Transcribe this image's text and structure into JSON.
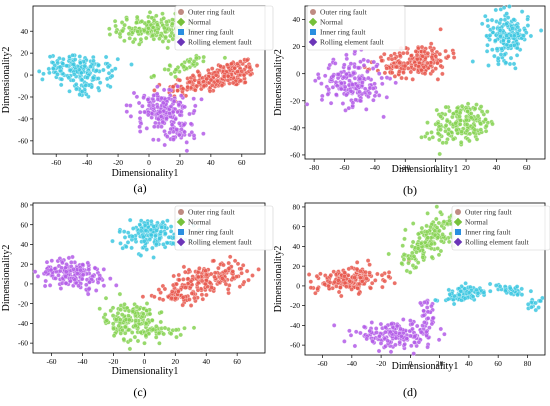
{
  "legend_labels": [
    "Outer ring fault",
    "Normal",
    "Inner ring fault",
    "Rolling element fault"
  ],
  "colors": {
    "outer": "#e8584e",
    "normal": "#86d252",
    "inner": "#3cc7e0",
    "rolling": "#b35ce8",
    "outer_marker": "#bf8b82",
    "normal_marker": "#76c13a",
    "inner_marker": "#2a8fe0",
    "rolling_marker": "#6b35b8"
  },
  "chart_data": [
    {
      "type": "scatter",
      "panel_label": "(a)",
      "xlabel": "Dimensionality1",
      "ylabel": "Dimensionality2",
      "xticks": [
        -60,
        -40,
        -20,
        0,
        20,
        40,
        60
      ],
      "yticks": [
        40,
        20,
        0,
        -20,
        -40,
        -60
      ],
      "xlim": [
        -75,
        75
      ],
      "ylim": [
        -72,
        63
      ],
      "legend_position": "top-right",
      "series": [
        {
          "name": "Outer ring fault",
          "clusters": [
            {
              "cx": 50,
              "cy": 0,
              "sx": 12,
              "sy": 6,
              "n": 170,
              "rot": 0.35
            },
            {
              "cx": 27,
              "cy": -10,
              "sx": 8,
              "sy": 5,
              "n": 60,
              "rot": 0.2
            }
          ]
        },
        {
          "name": "Normal",
          "clusters": [
            {
              "cx": 2,
              "cy": 42,
              "sx": 11,
              "sy": 6,
              "n": 160,
              "rot": 0
            },
            {
              "cx": 22,
              "cy": 8,
              "sx": 10,
              "sy": 3,
              "n": 40,
              "rot": 0.4
            }
          ]
        },
        {
          "name": "Inner ring fault",
          "clusters": [
            {
              "cx": -45,
              "cy": 5,
              "sx": 11,
              "sy": 6,
              "n": 150,
              "rot": -0.1
            },
            {
              "cx": -40,
              "cy": -10,
              "sx": 5,
              "sy": 5,
              "n": 30,
              "rot": 0
            }
          ]
        },
        {
          "name": "Rolling element fault",
          "clusters": [
            {
              "cx": 10,
              "cy": -33,
              "sx": 9,
              "sy": 10,
              "n": 170,
              "rot": 0.5
            },
            {
              "cx": 18,
              "cy": -55,
              "sx": 5,
              "sy": 4,
              "n": 30,
              "rot": 0
            }
          ]
        }
      ]
    },
    {
      "type": "scatter",
      "panel_label": "(b)",
      "xlabel": "Dimensionality1",
      "ylabel": "Dimensionality2",
      "xticks": [
        -80,
        -60,
        -40,
        -20,
        0,
        20,
        40,
        60
      ],
      "yticks": [
        40,
        20,
        0,
        -20,
        -40,
        -60
      ],
      "xlim": [
        -86,
        72
      ],
      "ylim": [
        -63,
        50
      ],
      "legend_position": "top-left",
      "series": [
        {
          "name": "Outer ring fault",
          "clusters": [
            {
              "cx": -10,
              "cy": 10,
              "sx": 10,
              "sy": 6,
              "n": 150,
              "rot": 0.15
            },
            {
              "cx": -28,
              "cy": 4,
              "sx": 6,
              "sy": 4,
              "n": 40,
              "rot": 0
            }
          ]
        },
        {
          "name": "Normal",
          "clusters": [
            {
              "cx": 18,
              "cy": -36,
              "sx": 11,
              "sy": 7,
              "n": 180,
              "rot": 0.35
            }
          ]
        },
        {
          "name": "Inner ring fault",
          "clusters": [
            {
              "cx": 47,
              "cy": 28,
              "sx": 7,
              "sy": 9,
              "n": 170,
              "rot": 0
            }
          ]
        },
        {
          "name": "Rolling element fault",
          "clusters": [
            {
              "cx": -55,
              "cy": -6,
              "sx": 10,
              "sy": 9,
              "n": 190,
              "rot": 0
            }
          ]
        }
      ]
    },
    {
      "type": "scatter",
      "panel_label": "(c)",
      "xlabel": "Dimensionality1",
      "ylabel": "Dimensionality2",
      "xticks": [
        -60,
        -40,
        -20,
        0,
        20,
        40,
        60
      ],
      "yticks": [
        80,
        60,
        40,
        20,
        0,
        -20,
        -40,
        -60
      ],
      "xlim": [
        -72,
        78
      ],
      "ylim": [
        -70,
        82
      ],
      "legend_position": "top-right",
      "series": [
        {
          "name": "Outer ring fault",
          "clusters": [
            {
              "cx": 42,
              "cy": 5,
              "sx": 13,
              "sy": 7,
              "n": 170,
              "rot": 0.3
            },
            {
              "cx": 20,
              "cy": -12,
              "sx": 7,
              "sy": 4,
              "n": 50,
              "rot": 0
            }
          ]
        },
        {
          "name": "Normal",
          "clusters": [
            {
              "cx": -8,
              "cy": -38,
              "sx": 8,
              "sy": 10,
              "n": 170,
              "rot": 0.3
            },
            {
              "cx": 12,
              "cy": -48,
              "sx": 7,
              "sy": 3,
              "n": 30,
              "rot": 0
            }
          ]
        },
        {
          "name": "Inner ring fault",
          "clusters": [
            {
              "cx": 5,
              "cy": 50,
              "sx": 11,
              "sy": 8,
              "n": 150,
              "rot": 0
            }
          ]
        },
        {
          "name": "Rolling element fault",
          "clusters": [
            {
              "cx": -45,
              "cy": 10,
              "sx": 11,
              "sy": 7,
              "n": 170,
              "rot": -0.2
            }
          ]
        }
      ]
    },
    {
      "type": "scatter",
      "panel_label": "(d)",
      "xlabel": "Dimensionality1",
      "ylabel": "Dimensionality2",
      "xticks": [
        -60,
        -40,
        -20,
        0,
        20,
        40,
        60,
        80
      ],
      "yticks": [
        80,
        60,
        40,
        20,
        0,
        -20,
        -40,
        -60
      ],
      "xlim": [
        -72,
        92
      ],
      "ylim": [
        -70,
        84
      ],
      "legend_position": "top-right",
      "series": [
        {
          "name": "Outer ring fault",
          "clusters": [
            {
              "cx": -42,
              "cy": 6,
              "sx": 12,
              "sy": 6,
              "n": 180,
              "rot": 0.15
            }
          ]
        },
        {
          "name": "Normal",
          "clusters": [
            {
              "cx": 12,
              "cy": 46,
              "sx": 6,
              "sy": 14,
              "n": 170,
              "rot": -0.45
            }
          ]
        },
        {
          "name": "Inner ring fault",
          "clusters": [
            {
              "cx": 38,
              "cy": -8,
              "sx": 10,
              "sy": 4,
              "n": 100,
              "rot": 0.3
            },
            {
              "cx": 70,
              "cy": -5,
              "sx": 6,
              "sy": 2,
              "n": 30,
              "rot": -0.4
            },
            {
              "cx": 84,
              "cy": -18,
              "sx": 3,
              "sy": 3,
              "n": 15,
              "rot": 0
            }
          ]
        },
        {
          "name": "Rolling element fault",
          "clusters": [
            {
              "cx": -10,
              "cy": -50,
              "sx": 14,
              "sy": 6,
              "n": 180,
              "rot": 0
            },
            {
              "cx": 12,
              "cy": -32,
              "sx": 3,
              "sy": 8,
              "n": 30,
              "rot": 0
            }
          ]
        }
      ]
    }
  ]
}
